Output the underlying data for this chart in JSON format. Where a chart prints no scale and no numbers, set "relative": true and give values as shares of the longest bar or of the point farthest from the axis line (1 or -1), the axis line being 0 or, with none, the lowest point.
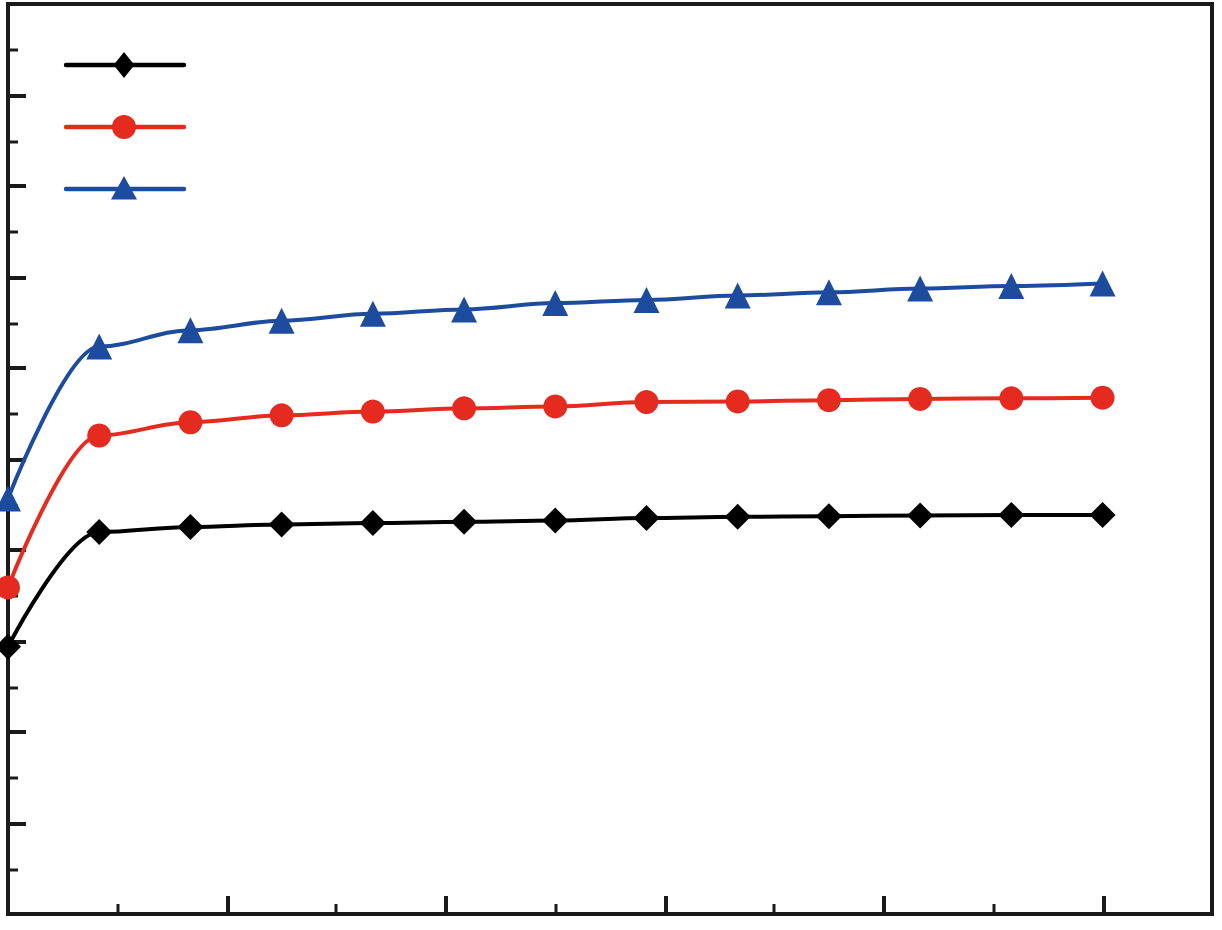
{
  "chart_data": {
    "type": "line",
    "relative": true,
    "categories": [
      null,
      null,
      null,
      null,
      null,
      null,
      null,
      null,
      null,
      null,
      null,
      null,
      null
    ],
    "series": [
      {
        "color": "#000000",
        "marker": "diamond",
        "values": [
          0.424,
          0.606,
          0.614,
          0.618,
          0.62,
          0.622,
          0.624,
          0.628,
          0.63,
          0.631,
          0.632,
          0.633,
          0.633
        ]
      },
      {
        "color": "#e52a20",
        "marker": "circle",
        "values": [
          0.518,
          0.759,
          0.78,
          0.791,
          0.797,
          0.802,
          0.805,
          0.812,
          0.813,
          0.815,
          0.817,
          0.818,
          0.819
        ]
      },
      {
        "color": "#1d4c9e",
        "marker": "triangle",
        "values": [
          0.659,
          0.9,
          0.926,
          0.941,
          0.952,
          0.959,
          0.969,
          0.974,
          0.981,
          0.986,
          0.992,
          0.996,
          1.0
        ]
      }
    ],
    "line_style": "solid",
    "grid": false
  }
}
